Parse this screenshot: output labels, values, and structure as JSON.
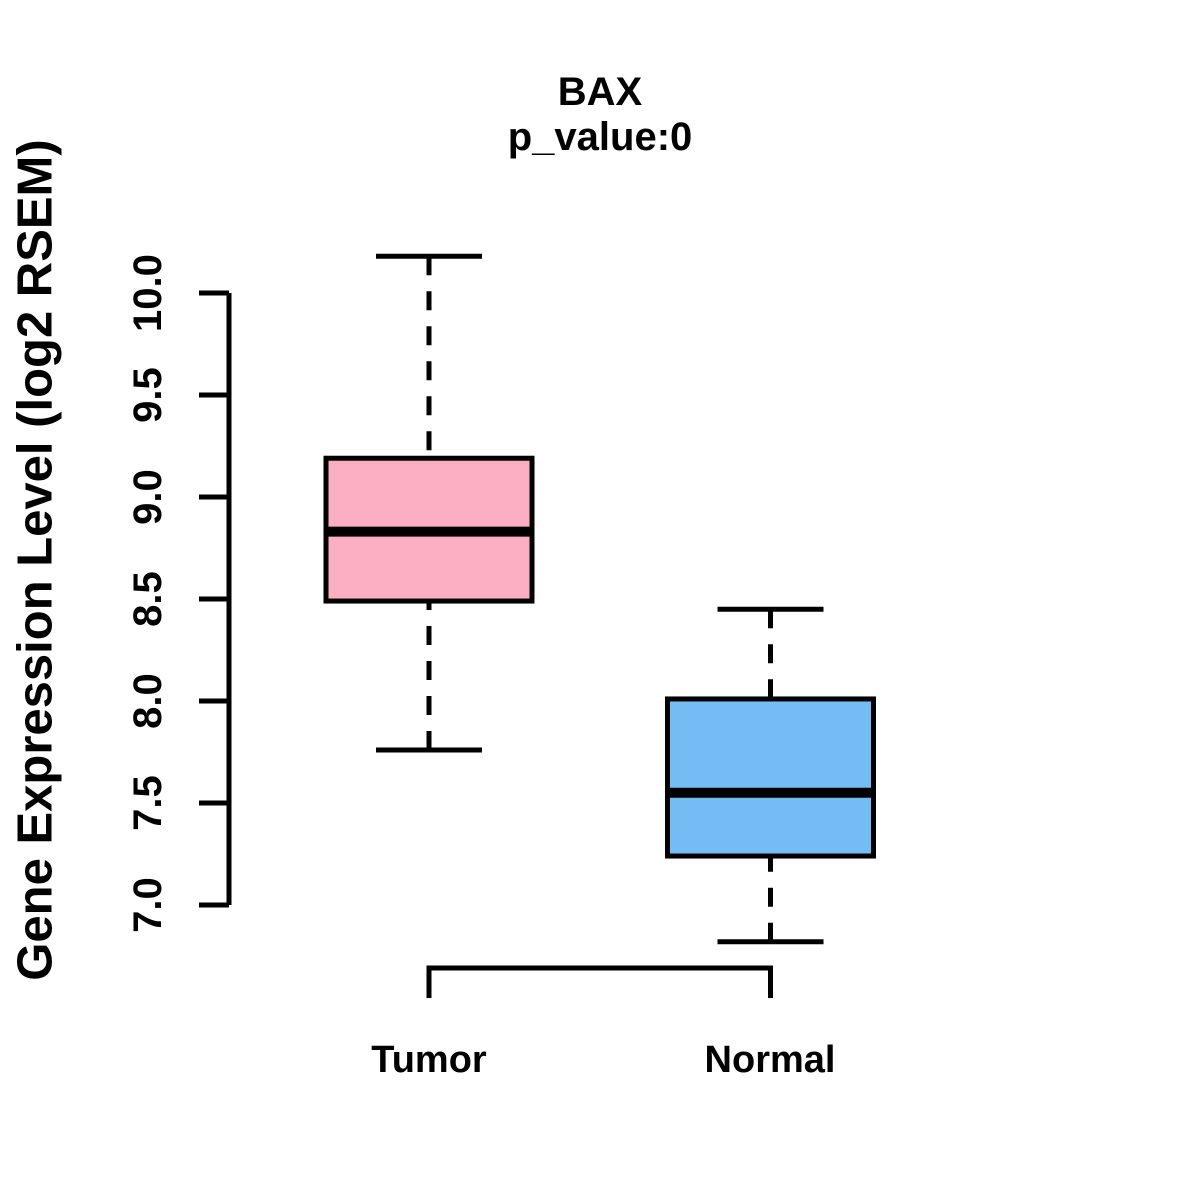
{
  "chart_data": {
    "type": "boxplot",
    "title": "BAX",
    "subtitle": "p_value:0",
    "ylabel": "Gene Expression Level (log2 RSEM)",
    "y_ticks": [
      "7.0",
      "7.5",
      "8.0",
      "8.5",
      "9.0",
      "9.5",
      "10.0"
    ],
    "ylim": [
      6.7,
      10.3
    ],
    "grid": false,
    "legend_position": "none",
    "colors": {
      "tumor_fill": "#FCAFC2",
      "normal_fill": "#74BDF4",
      "line": "#000000",
      "background": "#FFFFFF"
    },
    "groups": [
      {
        "label": "Tumor",
        "color": "#FCAFC2",
        "whisker_low": 7.76,
        "q1": 8.49,
        "median": 8.83,
        "q3": 9.19,
        "whisker_high": 10.18
      },
      {
        "label": "Normal",
        "color": "#74BDF4",
        "whisker_low": 6.82,
        "q1": 7.24,
        "median": 7.55,
        "q3": 8.01,
        "whisker_high": 8.45
      }
    ]
  }
}
